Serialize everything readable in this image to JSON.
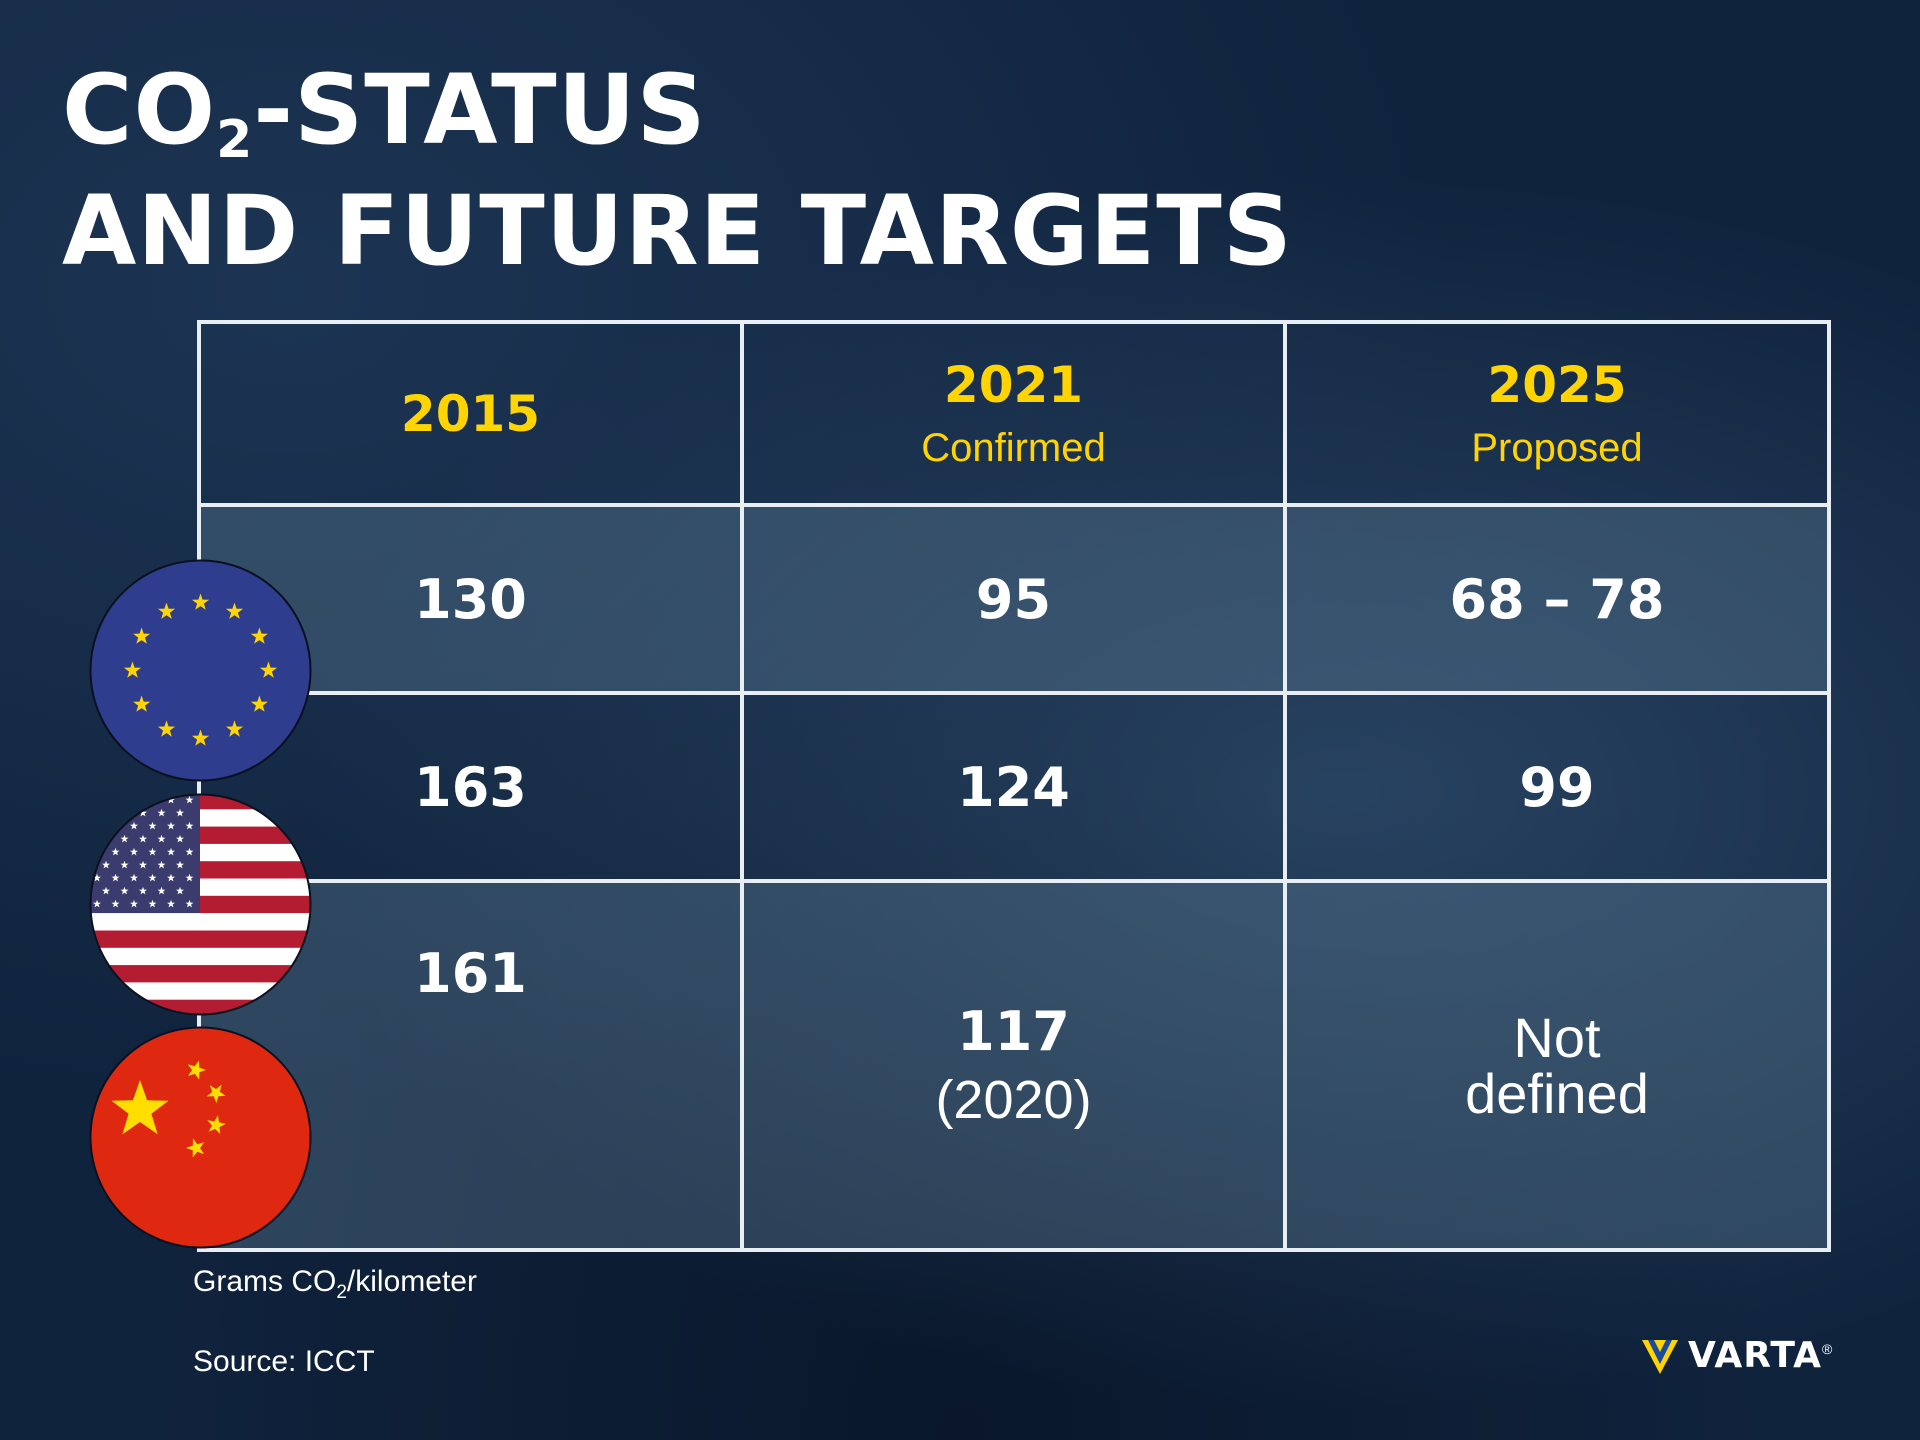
{
  "title": {
    "line1_prefix": "CO",
    "line1_subscript": "2",
    "line1_suffix": "-STATUS",
    "line2": "AND FUTURE TARGETS"
  },
  "chart_data": {
    "type": "table",
    "columns": [
      {
        "year": "2015",
        "status": ""
      },
      {
        "year": "2021",
        "status": "Confirmed"
      },
      {
        "year": "2025",
        "status": "Proposed"
      }
    ],
    "rows": [
      {
        "flag": "eu-flag-icon",
        "values": [
          {
            "main": "130"
          },
          {
            "main": "95"
          },
          {
            "main": "68 – 78"
          }
        ]
      },
      {
        "flag": "us-flag-icon",
        "values": [
          {
            "main": "163"
          },
          {
            "main": "124"
          },
          {
            "main": "99"
          }
        ]
      },
      {
        "flag": "china-flag-icon",
        "values": [
          {
            "main": "161"
          },
          {
            "main": "117",
            "sub": "(2020)"
          },
          {
            "text_line1": "Not",
            "text_line2": "defined"
          }
        ]
      }
    ],
    "unit": {
      "prefix": "Grams CO",
      "subscript": "2",
      "suffix": "/kilometer"
    },
    "source": "Source: ICCT"
  },
  "brand": {
    "name": "VARTA",
    "mark": "®",
    "logo_color": "#ffd400",
    "logo_accent": "#1a4aa0"
  },
  "colors": {
    "accent": "#ffd400",
    "background": "#10233d",
    "grid": "#e9eef3"
  }
}
